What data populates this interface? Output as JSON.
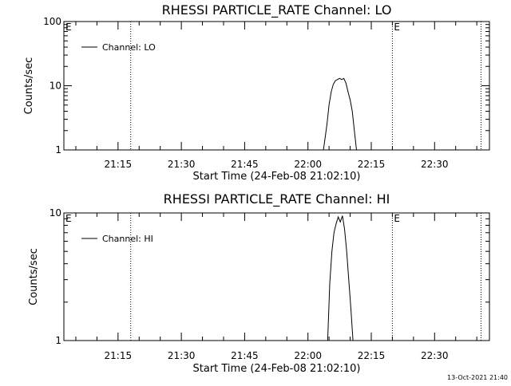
{
  "footer_timestamp": "13-Oct-2021 21:40",
  "chart_data": [
    {
      "type": "line",
      "title": "RHESSI PARTICLE_RATE Channel: LO",
      "xlabel": "Start Time (24-Feb-08 21:02:10)",
      "ylabel": "Counts/sec",
      "yscale": "log",
      "ylim": [
        1,
        100
      ],
      "yticks": [
        {
          "value": 1,
          "label": "1"
        },
        {
          "value": 10,
          "label": "10"
        },
        {
          "value": 100,
          "label": "100"
        }
      ],
      "xlim": [
        "21:02:10",
        "22:43:00"
      ],
      "xticks": [
        {
          "value": "21:15",
          "label": "21:15"
        },
        {
          "value": "21:30",
          "label": "21:30"
        },
        {
          "value": "21:45",
          "label": "21:45"
        },
        {
          "value": "22:00",
          "label": "22:00"
        },
        {
          "value": "22:15",
          "label": "22:15"
        },
        {
          "value": "22:30",
          "label": "22:30"
        }
      ],
      "vlines": [
        {
          "time": "21:02:10",
          "label": "E"
        },
        {
          "time": "21:18:00",
          "label": ""
        },
        {
          "time": "22:20:00",
          "label": "E"
        },
        {
          "time": "22:41:00",
          "label": ""
        }
      ],
      "legend": {
        "placement": "top-left",
        "entries": [
          "Channel: LO"
        ]
      },
      "series": [
        {
          "name": "Channel: LO",
          "x": [
            "22:03:40",
            "22:04:30",
            "22:05:00",
            "22:05:30",
            "22:06:00",
            "22:06:30",
            "22:07:00",
            "22:07:30",
            "22:08:00",
            "22:08:30",
            "22:09:00",
            "22:09:30",
            "22:10:00",
            "22:10:30",
            "22:11:00",
            "22:11:30"
          ],
          "y": [
            1,
            2.5,
            5,
            8,
            10.5,
            12,
            12.5,
            13,
            12.5,
            13,
            11,
            8,
            6,
            4,
            2,
            1
          ]
        }
      ]
    },
    {
      "type": "line",
      "title": "RHESSI PARTICLE_RATE Channel: HI",
      "xlabel": "Start Time (24-Feb-08 21:02:10)",
      "ylabel": "Counts/sec",
      "yscale": "log",
      "ylim": [
        1,
        10
      ],
      "yticks": [
        {
          "value": 1,
          "label": "1"
        },
        {
          "value": 10,
          "label": "10"
        }
      ],
      "xlim": [
        "21:02:10",
        "22:43:00"
      ],
      "xticks": [
        {
          "value": "21:15",
          "label": "21:15"
        },
        {
          "value": "21:30",
          "label": "21:30"
        },
        {
          "value": "21:45",
          "label": "21:45"
        },
        {
          "value": "22:00",
          "label": "22:00"
        },
        {
          "value": "22:15",
          "label": "22:15"
        },
        {
          "value": "22:30",
          "label": "22:30"
        }
      ],
      "vlines": [
        {
          "time": "21:02:10",
          "label": "E"
        },
        {
          "time": "21:18:00",
          "label": ""
        },
        {
          "time": "22:20:00",
          "label": "E"
        },
        {
          "time": "22:41:00",
          "label": ""
        }
      ],
      "legend": {
        "placement": "top-left",
        "entries": [
          "Channel: HI"
        ]
      },
      "series": [
        {
          "name": "Channel: HI",
          "x": [
            "22:04:40",
            "22:05:10",
            "22:05:40",
            "22:06:10",
            "22:06:40",
            "22:07:10",
            "22:07:40",
            "22:08:10",
            "22:08:40",
            "22:09:10",
            "22:09:40",
            "22:10:10",
            "22:10:40"
          ],
          "y": [
            1,
            2.8,
            5,
            7,
            8.2,
            9.3,
            8.5,
            9.5,
            7.5,
            5,
            3,
            1.8,
            1
          ]
        }
      ]
    }
  ]
}
